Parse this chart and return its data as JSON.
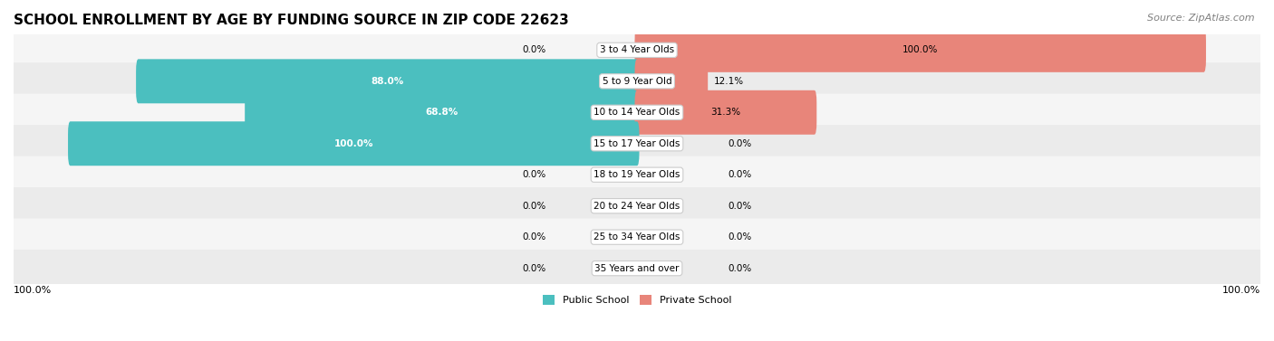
{
  "title": "SCHOOL ENROLLMENT BY AGE BY FUNDING SOURCE IN ZIP CODE 22623",
  "source": "Source: ZipAtlas.com",
  "categories": [
    "3 to 4 Year Olds",
    "5 to 9 Year Old",
    "10 to 14 Year Olds",
    "15 to 17 Year Olds",
    "18 to 19 Year Olds",
    "20 to 24 Year Olds",
    "25 to 34 Year Olds",
    "35 Years and over"
  ],
  "public_values": [
    0.0,
    88.0,
    68.8,
    100.0,
    0.0,
    0.0,
    0.0,
    0.0
  ],
  "private_values": [
    100.0,
    12.1,
    31.3,
    0.0,
    0.0,
    0.0,
    0.0,
    0.0
  ],
  "public_color": "#4bbfbf",
  "private_color": "#e8857a",
  "public_label": "Public School",
  "private_label": "Private School",
  "row_bg_colors": [
    "#f5f5f5",
    "#ebebeb"
  ],
  "title_fontsize": 11,
  "source_fontsize": 8,
  "label_fontsize": 7.5,
  "value_fontsize": 7.5,
  "legend_fontsize": 8,
  "axis_label_left": "100.0%",
  "axis_label_right": "100.0%",
  "background_color": "#ffffff"
}
